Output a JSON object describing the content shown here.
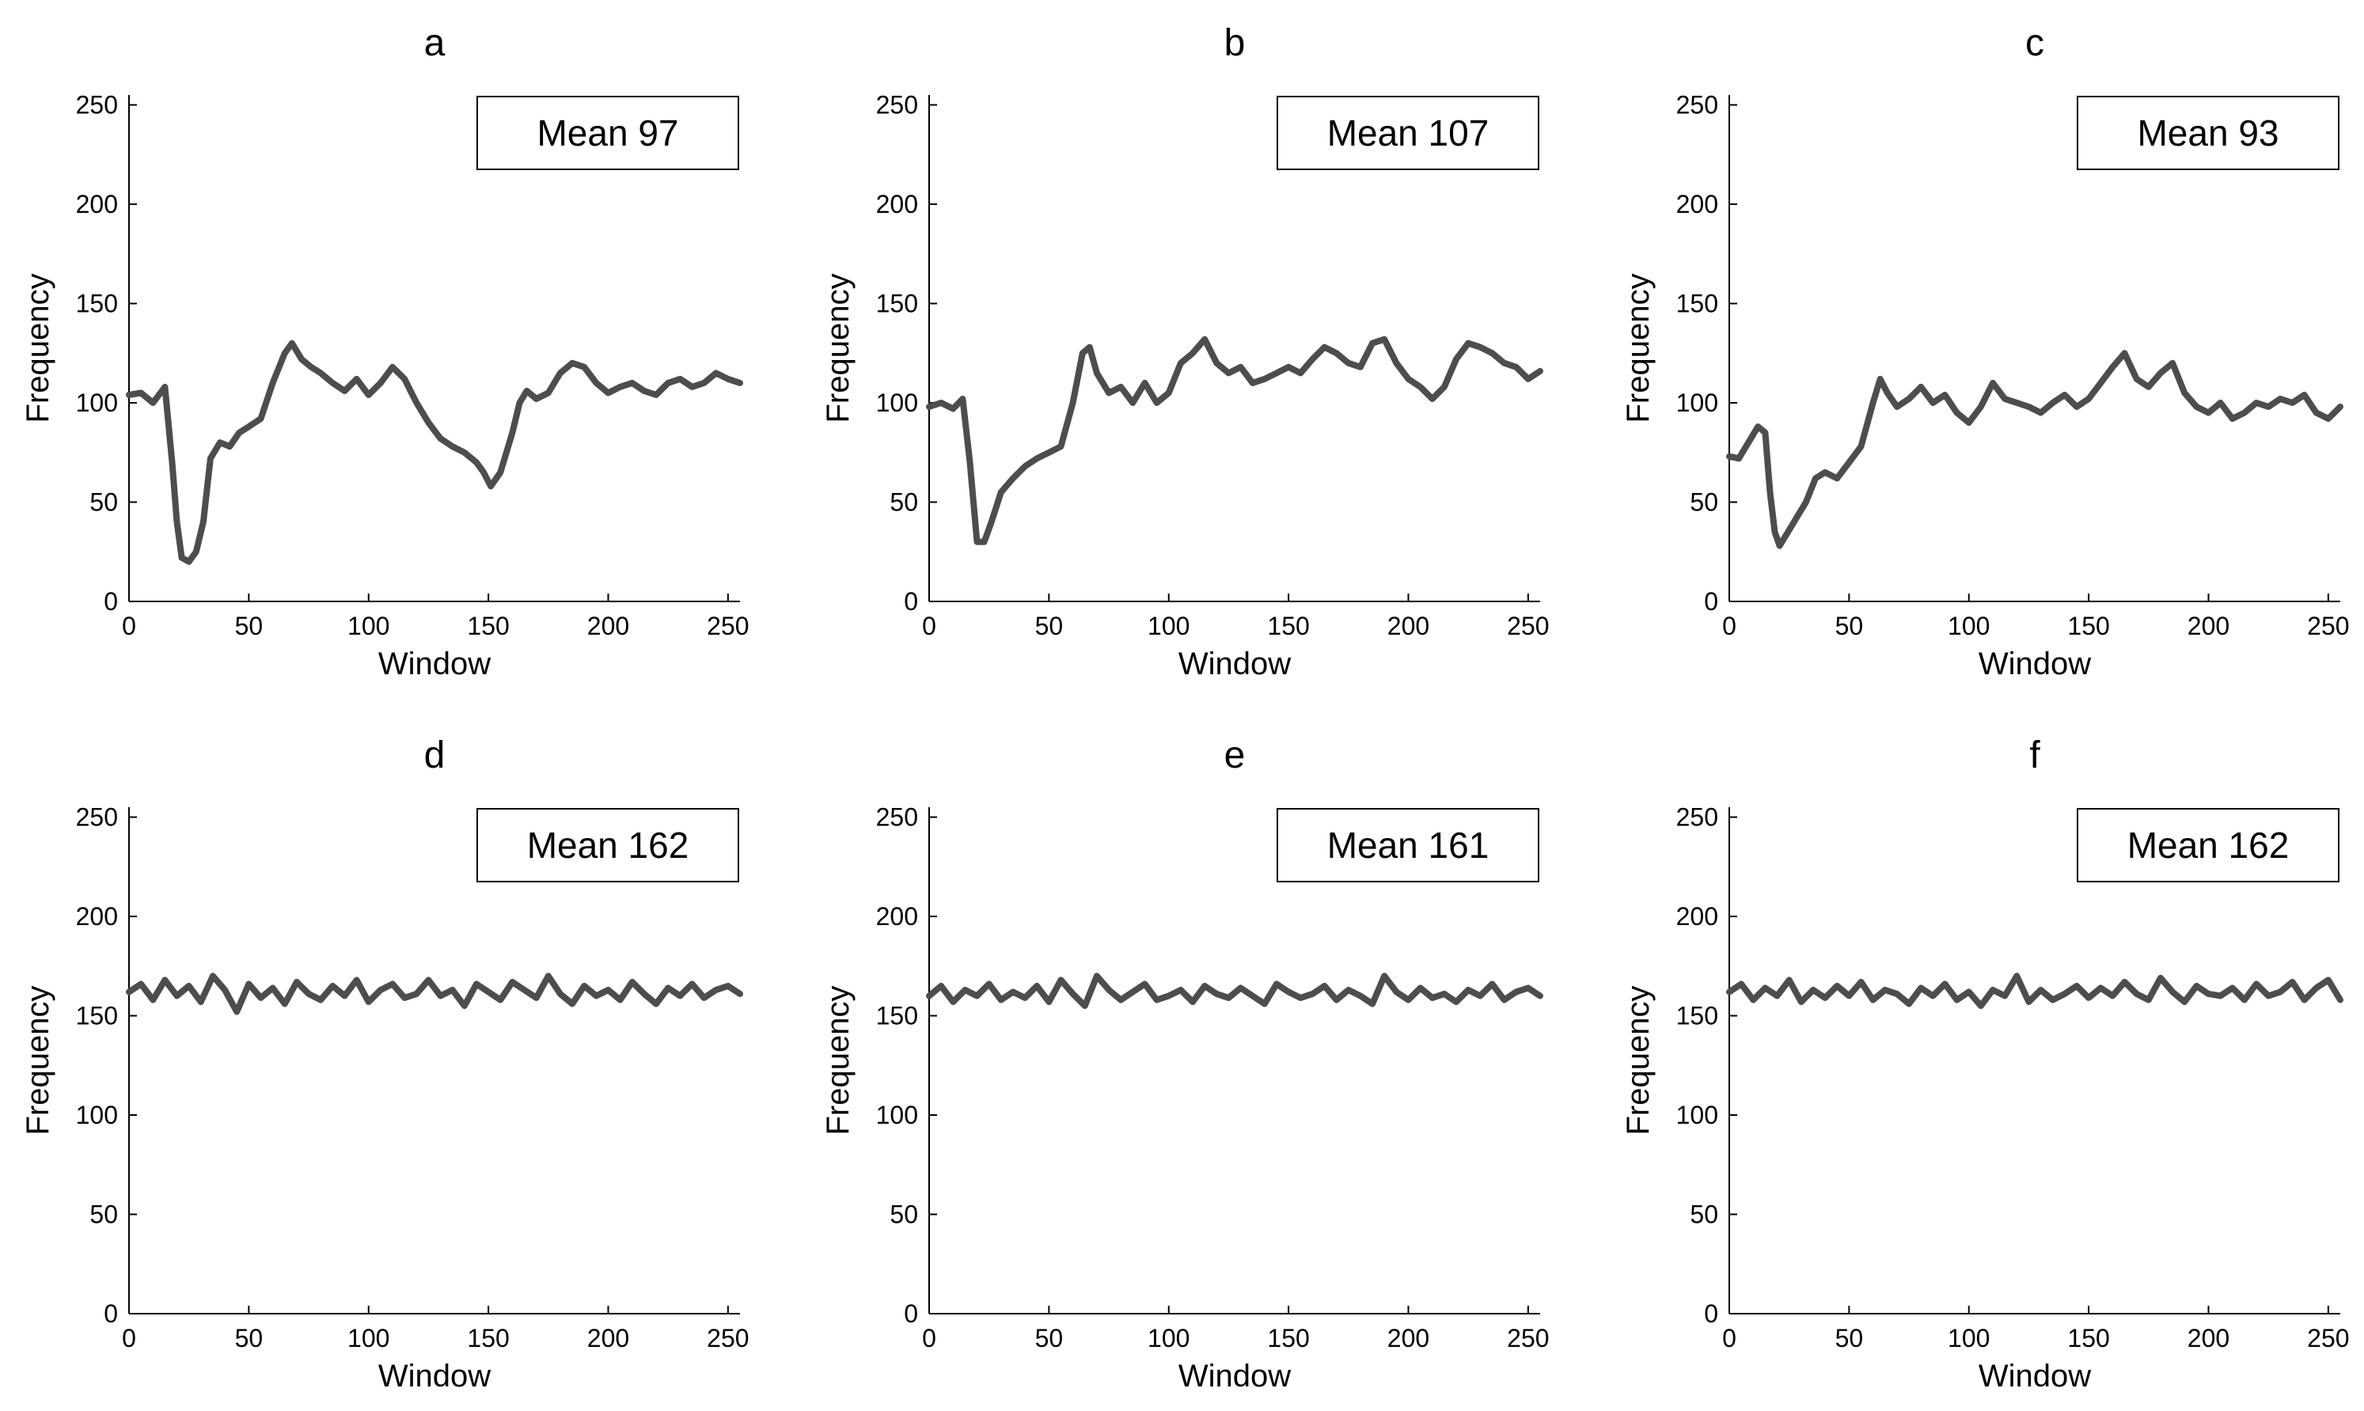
{
  "chart_data": [
    {
      "type": "line",
      "title": "a",
      "xlabel": "Window",
      "ylabel": "Frequency",
      "xlim": [
        0,
        255
      ],
      "ylim": [
        0,
        255
      ],
      "xticks": [
        0,
        50,
        100,
        150,
        200,
        250
      ],
      "yticks": [
        0,
        50,
        100,
        150,
        200,
        250
      ],
      "legend": "Mean 97",
      "legend_position": "top-right",
      "line_color": "#4d4d4d",
      "series": [
        {
          "name": "frequency",
          "x": [
            0,
            5,
            10,
            15,
            18,
            20,
            22,
            25,
            28,
            31,
            34,
            38,
            42,
            46,
            50,
            55,
            60,
            65,
            68,
            72,
            76,
            80,
            85,
            90,
            95,
            100,
            105,
            110,
            115,
            120,
            125,
            130,
            135,
            140,
            145,
            148,
            151,
            155,
            160,
            163,
            166,
            170,
            175,
            180,
            185,
            190,
            195,
            200,
            205,
            210,
            215,
            220,
            225,
            230,
            235,
            240,
            245,
            250,
            255
          ],
          "values": [
            104,
            105,
            100,
            108,
            70,
            40,
            22,
            20,
            25,
            40,
            72,
            80,
            78,
            85,
            88,
            92,
            110,
            125,
            130,
            122,
            118,
            115,
            110,
            106,
            112,
            104,
            110,
            118,
            112,
            100,
            90,
            82,
            78,
            75,
            70,
            65,
            58,
            65,
            85,
            100,
            106,
            102,
            105,
            115,
            120,
            118,
            110,
            105,
            108,
            110,
            106,
            104,
            110,
            112,
            108,
            110,
            115,
            112,
            110
          ]
        }
      ]
    },
    {
      "type": "line",
      "title": "b",
      "xlabel": "Window",
      "ylabel": "Frequency",
      "xlim": [
        0,
        255
      ],
      "ylim": [
        0,
        255
      ],
      "xticks": [
        0,
        50,
        100,
        150,
        200,
        250
      ],
      "yticks": [
        0,
        50,
        100,
        150,
        200,
        250
      ],
      "legend": "Mean 107",
      "legend_position": "top-right",
      "line_color": "#4d4d4d",
      "series": [
        {
          "name": "frequency",
          "x": [
            0,
            5,
            10,
            14,
            17,
            20,
            23,
            26,
            30,
            35,
            40,
            45,
            50,
            55,
            60,
            64,
            67,
            70,
            75,
            80,
            85,
            90,
            95,
            100,
            105,
            110,
            115,
            120,
            125,
            130,
            135,
            140,
            145,
            150,
            155,
            160,
            165,
            170,
            175,
            180,
            185,
            190,
            195,
            200,
            205,
            210,
            215,
            220,
            225,
            230,
            235,
            240,
            245,
            250,
            255
          ],
          "values": [
            98,
            100,
            97,
            102,
            70,
            30,
            30,
            40,
            55,
            62,
            68,
            72,
            75,
            78,
            100,
            125,
            128,
            115,
            105,
            108,
            100,
            110,
            100,
            105,
            120,
            125,
            132,
            120,
            115,
            118,
            110,
            112,
            115,
            118,
            115,
            122,
            128,
            125,
            120,
            118,
            130,
            132,
            120,
            112,
            108,
            102,
            108,
            122,
            130,
            128,
            125,
            120,
            118,
            112,
            116
          ]
        }
      ]
    },
    {
      "type": "line",
      "title": "c",
      "xlabel": "Window",
      "ylabel": "Frequency",
      "xlim": [
        0,
        255
      ],
      "ylim": [
        0,
        255
      ],
      "xticks": [
        0,
        50,
        100,
        150,
        200,
        250
      ],
      "yticks": [
        0,
        50,
        100,
        150,
        200,
        250
      ],
      "legend": "Mean 93",
      "legend_position": "top-right",
      "line_color": "#4d4d4d",
      "series": [
        {
          "name": "frequency",
          "x": [
            0,
            4,
            8,
            12,
            15,
            17,
            19,
            21,
            24,
            28,
            32,
            36,
            40,
            45,
            50,
            55,
            60,
            63,
            66,
            70,
            75,
            80,
            85,
            90,
            95,
            100,
            105,
            110,
            115,
            120,
            125,
            130,
            135,
            140,
            145,
            150,
            155,
            160,
            165,
            170,
            175,
            180,
            185,
            190,
            195,
            200,
            205,
            210,
            215,
            220,
            225,
            230,
            235,
            240,
            245,
            250,
            255
          ],
          "values": [
            73,
            72,
            80,
            88,
            85,
            55,
            35,
            28,
            34,
            42,
            50,
            62,
            65,
            62,
            70,
            78,
            100,
            112,
            105,
            98,
            102,
            108,
            100,
            104,
            95,
            90,
            98,
            110,
            102,
            100,
            98,
            95,
            100,
            104,
            98,
            102,
            110,
            118,
            125,
            112,
            108,
            115,
            120,
            105,
            98,
            95,
            100,
            92,
            95,
            100,
            98,
            102,
            100,
            104,
            95,
            92,
            98
          ]
        }
      ]
    },
    {
      "type": "line",
      "title": "d",
      "xlabel": "Window",
      "ylabel": "Frequency",
      "xlim": [
        0,
        255
      ],
      "ylim": [
        0,
        255
      ],
      "xticks": [
        0,
        50,
        100,
        150,
        200,
        250
      ],
      "yticks": [
        0,
        50,
        100,
        150,
        200,
        250
      ],
      "legend": "Mean 162",
      "legend_position": "top-right",
      "line_color": "#4d4d4d",
      "series": [
        {
          "name": "frequency",
          "x": [
            0,
            5,
            10,
            15,
            20,
            25,
            30,
            35,
            40,
            45,
            50,
            55,
            60,
            65,
            70,
            75,
            80,
            85,
            90,
            95,
            100,
            105,
            110,
            115,
            120,
            125,
            130,
            135,
            140,
            145,
            150,
            155,
            160,
            165,
            170,
            175,
            180,
            185,
            190,
            195,
            200,
            205,
            210,
            215,
            220,
            225,
            230,
            235,
            240,
            245,
            250,
            255
          ],
          "values": [
            162,
            166,
            158,
            168,
            160,
            165,
            157,
            170,
            163,
            152,
            166,
            159,
            164,
            156,
            167,
            161,
            158,
            165,
            160,
            168,
            157,
            163,
            166,
            159,
            161,
            168,
            160,
            163,
            155,
            166,
            162,
            158,
            167,
            163,
            159,
            170,
            161,
            156,
            165,
            160,
            163,
            158,
            167,
            161,
            156,
            164,
            160,
            166,
            159,
            163,
            165,
            161
          ]
        }
      ]
    },
    {
      "type": "line",
      "title": "e",
      "xlabel": "Window",
      "ylabel": "Frequency",
      "xlim": [
        0,
        255
      ],
      "ylim": [
        0,
        255
      ],
      "xticks": [
        0,
        50,
        100,
        150,
        200,
        250
      ],
      "yticks": [
        0,
        50,
        100,
        150,
        200,
        250
      ],
      "legend": "Mean 161",
      "legend_position": "top-right",
      "line_color": "#4d4d4d",
      "series": [
        {
          "name": "frequency",
          "x": [
            0,
            5,
            10,
            15,
            20,
            25,
            30,
            35,
            40,
            45,
            50,
            55,
            60,
            65,
            70,
            75,
            80,
            85,
            90,
            95,
            100,
            105,
            110,
            115,
            120,
            125,
            130,
            135,
            140,
            145,
            150,
            155,
            160,
            165,
            170,
            175,
            180,
            185,
            190,
            195,
            200,
            205,
            210,
            215,
            220,
            225,
            230,
            235,
            240,
            245,
            250,
            255
          ],
          "values": [
            160,
            165,
            157,
            163,
            160,
            166,
            158,
            162,
            159,
            165,
            157,
            168,
            161,
            155,
            170,
            163,
            158,
            162,
            166,
            158,
            160,
            163,
            157,
            165,
            161,
            159,
            164,
            160,
            156,
            166,
            162,
            159,
            161,
            165,
            158,
            163,
            160,
            156,
            170,
            162,
            158,
            164,
            159,
            161,
            157,
            163,
            160,
            166,
            158,
            162,
            164,
            160
          ]
        }
      ]
    },
    {
      "type": "line",
      "title": "f",
      "xlabel": "Window",
      "ylabel": "Frequency",
      "xlim": [
        0,
        255
      ],
      "ylim": [
        0,
        255
      ],
      "xticks": [
        0,
        50,
        100,
        150,
        200,
        250
      ],
      "yticks": [
        0,
        50,
        100,
        150,
        200,
        250
      ],
      "legend": "Mean 162",
      "legend_position": "top-right",
      "line_color": "#4d4d4d",
      "series": [
        {
          "name": "frequency",
          "x": [
            0,
            5,
            10,
            15,
            20,
            25,
            30,
            35,
            40,
            45,
            50,
            55,
            60,
            65,
            70,
            75,
            80,
            85,
            90,
            95,
            100,
            105,
            110,
            115,
            120,
            125,
            130,
            135,
            140,
            145,
            150,
            155,
            160,
            165,
            170,
            175,
            180,
            185,
            190,
            195,
            200,
            205,
            210,
            215,
            220,
            225,
            230,
            235,
            240,
            245,
            250,
            255
          ],
          "values": [
            162,
            166,
            158,
            164,
            160,
            168,
            157,
            163,
            159,
            165,
            160,
            167,
            158,
            163,
            161,
            156,
            164,
            160,
            166,
            158,
            162,
            155,
            163,
            160,
            170,
            157,
            163,
            158,
            161,
            165,
            159,
            164,
            160,
            167,
            161,
            158,
            169,
            162,
            157,
            165,
            161,
            160,
            164,
            158,
            166,
            160,
            162,
            167,
            158,
            164,
            168,
            158
          ]
        }
      ]
    }
  ]
}
